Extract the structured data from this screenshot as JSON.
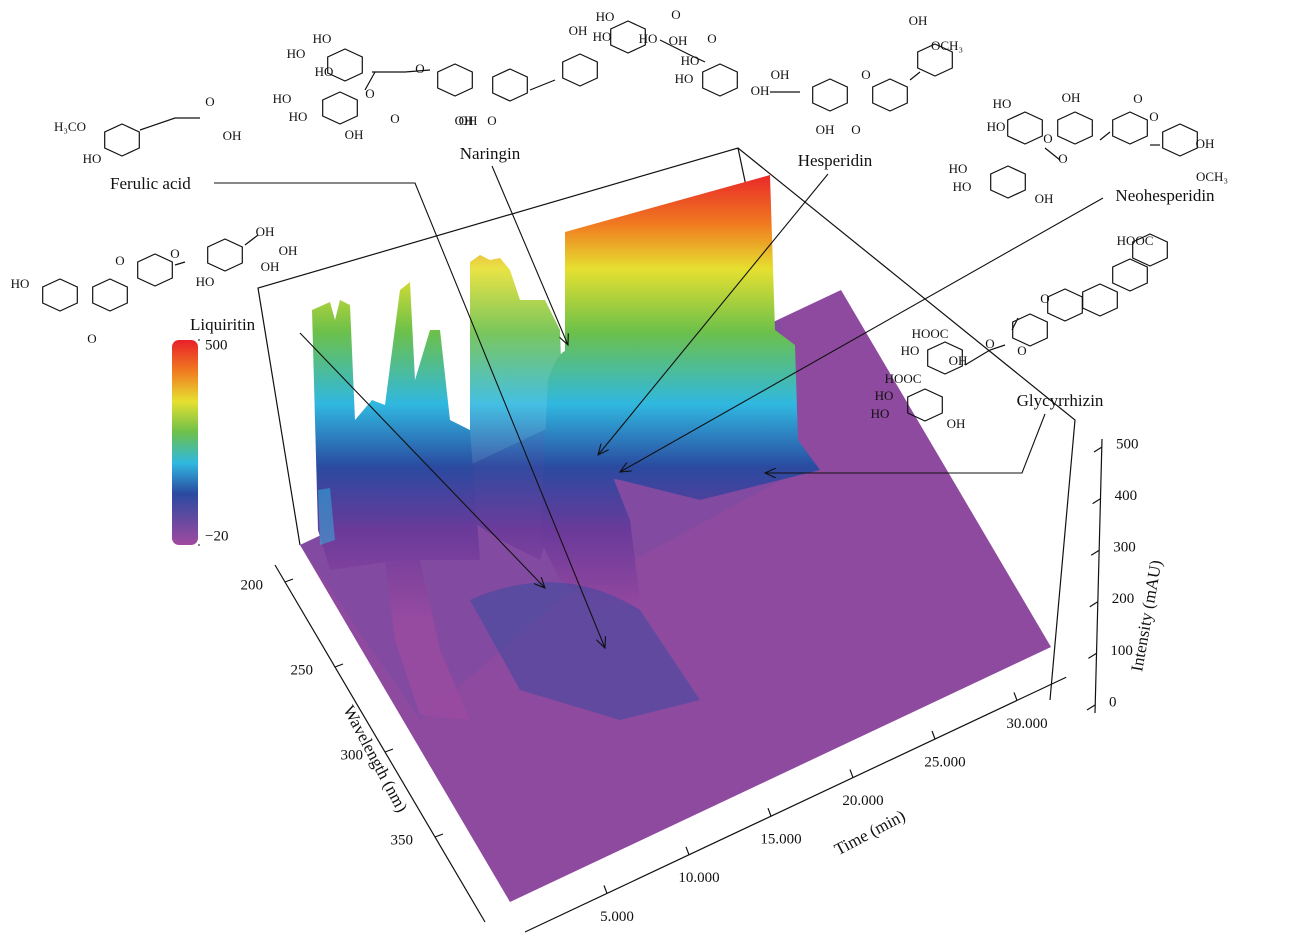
{
  "chart_data": {
    "type": "surface3d",
    "xlabel": "Time (min)",
    "ylabel": "Wavelength (nm)",
    "zlabel": "Intensity (mAU)",
    "xlim": [
      0,
      33
    ],
    "xticks": [
      {
        "value": 5,
        "label": "5.000"
      },
      {
        "value": 10,
        "label": "10.000"
      },
      {
        "value": 15,
        "label": "15.000"
      },
      {
        "value": 20,
        "label": "20.000"
      },
      {
        "value": 25,
        "label": "25.000"
      },
      {
        "value": 30,
        "label": "30.000"
      }
    ],
    "ylim": [
      190,
      400
    ],
    "yticks": [
      200,
      250,
      300,
      350
    ],
    "zlim": [
      0,
      500
    ],
    "zticks": [
      0,
      100,
      200,
      300,
      400,
      500
    ],
    "colorbar": {
      "lim": [
        -20,
        500
      ],
      "ticks": [
        {
          "value": -20,
          "label": "−20"
        },
        500
      ]
    },
    "annotations": [
      {
        "text": "Ferulic acid",
        "groups": [
          "H₃CO",
          "HO",
          "O",
          "OH"
        ]
      },
      {
        "text": "Naringin",
        "groups": [
          "HO",
          "HO",
          "HO",
          "HO",
          "HO",
          "OH",
          "O",
          "O",
          "OH",
          "OH",
          "O",
          "OH",
          "O"
        ]
      },
      {
        "text": "Hesperidin",
        "groups": [
          "HO",
          "HO",
          "HO",
          "OH",
          "HO",
          "HO",
          "OH",
          "OH",
          "O",
          "OH",
          "OCH₃",
          "O",
          "O",
          "OH",
          "O"
        ]
      },
      {
        "text": "Neohesperidin",
        "groups": [
          "HO",
          "HO",
          "HO",
          "HO",
          "OH",
          "OH",
          "O",
          "O",
          "O",
          "O",
          "OH",
          "OCH₃"
        ]
      },
      {
        "text": "Liquiritin",
        "groups": [
          "HO",
          "O",
          "O",
          "O",
          "OH",
          "OH",
          "OH",
          "HO"
        ]
      },
      {
        "text": "Glycyrrhizin",
        "groups": [
          "HOOC",
          "O",
          "HOOC",
          "HO",
          "O",
          "HOOC",
          "HO",
          "HO",
          "OH",
          "OH",
          "O"
        ]
      }
    ]
  }
}
